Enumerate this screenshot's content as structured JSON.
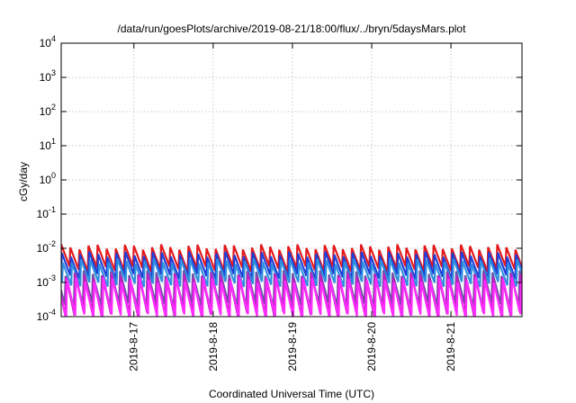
{
  "chart_data": {
    "type": "line",
    "title": "/data/run/goesPlots/archive/2019-08-21/18:00/flux/../bryn/5daysMars.plot",
    "xlabel": "Coordinated Universal Time (UTC)",
    "ylabel": "cGy/day",
    "y_scale": "log",
    "ylim": [
      0.0001,
      10000
    ],
    "xlim": [
      "2019-08-16 02:00",
      "2019-08-21 21:30"
    ],
    "grid": true,
    "legend": "none",
    "x_ticks": [
      "2019-8-17",
      "2019-8-18",
      "2019-8-19",
      "2019-8-20",
      "2019-8-21"
    ],
    "y_ticks": [
      {
        "base": "10",
        "exp": "4"
      },
      {
        "base": "10",
        "exp": "3"
      },
      {
        "base": "10",
        "exp": "2"
      },
      {
        "base": "10",
        "exp": "1"
      },
      {
        "base": "10",
        "exp": "0"
      },
      {
        "base": "10",
        "exp": "-1"
      },
      {
        "base": "10",
        "exp": "-2"
      },
      {
        "base": "10",
        "exp": "-3"
      },
      {
        "base": "10",
        "exp": "-4"
      }
    ],
    "sawtooth_period_hours": 2.75,
    "series": [
      {
        "color": "#e31a1c",
        "peak": 0.011,
        "trough": 0.0025,
        "phase_hours": 0.0
      },
      {
        "color": "#1f3fd8",
        "peak": 0.0068,
        "trough": 0.0015,
        "phase_hours": 0.2
      },
      {
        "color": "#2f8fe0",
        "peak": 0.0042,
        "trough": 0.0009,
        "phase_hours": 0.5
      },
      {
        "color": "#6b56a8",
        "peak": 0.0019,
        "trough": 0.00022,
        "phase_hours": 1.3
      },
      {
        "color": "#c020c0",
        "peak": 0.0016,
        "trough": 0.00012,
        "phase_hours": 1.5
      },
      {
        "color": "#ff2cff",
        "peak": 0.0012,
        "trough": 0.0001,
        "phase_hours": 1.75
      }
    ]
  }
}
